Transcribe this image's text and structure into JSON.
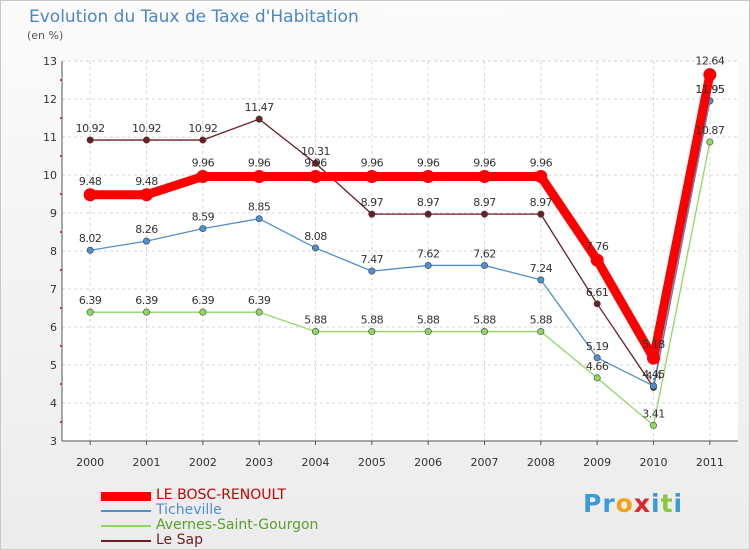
{
  "chart_data": {
    "type": "line",
    "title": "Evolution du Taux de Taxe d'Habitation",
    "unit_label": "(en %)",
    "x": [
      "2000",
      "2001",
      "2002",
      "2003",
      "2004",
      "2005",
      "2006",
      "2007",
      "2008",
      "2009",
      "2010",
      "2011"
    ],
    "y_ticks": [
      "3",
      "4",
      "5",
      "6",
      "7",
      "8",
      "9",
      "10",
      "11",
      "12",
      "13"
    ],
    "ylim": [
      3,
      13
    ],
    "grid": true,
    "legend_position": "bottom-left",
    "series": [
      {
        "name": "LE BOSC-RENOULT",
        "color": "#ff0000",
        "values": [
          9.48,
          9.48,
          9.96,
          9.96,
          9.96,
          9.96,
          9.96,
          9.96,
          9.96,
          7.76,
          5.18,
          12.64
        ],
        "labels": [
          "9.48",
          "9.48",
          "9.96",
          "9.96",
          "9.96",
          "9.96",
          "9.96",
          "9.96",
          "9.96",
          "7.76",
          "5.18",
          "12.64"
        ]
      },
      {
        "name": "Ticheville",
        "color": "#4f8fce",
        "values": [
          8.02,
          8.26,
          8.59,
          8.85,
          8.08,
          7.47,
          7.62,
          7.62,
          7.24,
          5.19,
          4.45,
          11.95
        ],
        "labels": [
          "8.02",
          "8.26",
          "8.59",
          "8.85",
          "8.08",
          "7.47",
          "7.62",
          "7.62",
          "7.24",
          "5.19",
          "4.45",
          "11.95"
        ]
      },
      {
        "name": "Avernes-Saint-Gourgon",
        "color": "#8fd860",
        "values": [
          6.39,
          6.39,
          6.39,
          6.39,
          5.88,
          5.88,
          5.88,
          5.88,
          5.88,
          4.66,
          3.41,
          10.87
        ],
        "labels": [
          "6.39",
          "6.39",
          "6.39",
          "6.39",
          "5.88",
          "5.88",
          "5.88",
          "5.88",
          "5.88",
          "4.66",
          "3.41",
          "10.87"
        ]
      },
      {
        "name": "Le Sap",
        "color": "#6b1e23",
        "values": [
          10.92,
          10.92,
          10.92,
          11.47,
          10.31,
          8.97,
          8.97,
          8.97,
          8.97,
          6.61,
          4.41,
          11.95
        ],
        "labels": [
          "10.92",
          "10.92",
          "10.92",
          "11.47",
          "10.31",
          "8.97",
          "8.97",
          "8.97",
          "8.97",
          "6.61",
          "4.4",
          "11.95"
        ]
      }
    ]
  },
  "brand": {
    "letters": [
      {
        "ch": "P",
        "color": "#3b9ad8"
      },
      {
        "ch": "r",
        "color": "#3b9ad8"
      },
      {
        "ch": "o",
        "color": "#f3a21c"
      },
      {
        "ch": "x",
        "color": "#e2242b"
      },
      {
        "ch": "i",
        "color": "#3b9ad8"
      },
      {
        "ch": "t",
        "color": "#8cc63f"
      },
      {
        "ch": "i",
        "color": "#3b9ad8"
      }
    ]
  }
}
